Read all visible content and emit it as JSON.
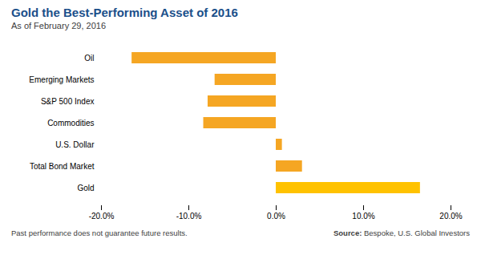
{
  "chart_data": {
    "type": "bar",
    "orientation": "horizontal",
    "title": "Gold the Best-Performing Asset of 2016",
    "subtitle": "As of February 29, 2016",
    "categories": [
      "Oil",
      "Emerging Markets",
      "S&P 500 Index",
      "Commodities",
      "U.S. Dollar",
      "Total Bond Market",
      "Gold"
    ],
    "values": [
      -16.5,
      -7.0,
      -7.8,
      -8.3,
      0.7,
      3.0,
      16.5
    ],
    "colors": [
      "#F5A623",
      "#F5A623",
      "#F5A623",
      "#F5A623",
      "#F5A623",
      "#F5A623",
      "#FFC200"
    ],
    "xlim": [
      -20.0,
      20.0
    ],
    "xticks": [
      {
        "value": -20.0,
        "label": "-20.0%"
      },
      {
        "value": -10.0,
        "label": "-10.0%"
      },
      {
        "value": 0.0,
        "label": "0.0%"
      },
      {
        "value": 10.0,
        "label": "10.0%"
      },
      {
        "value": 20.0,
        "label": "20.0%"
      }
    ],
    "grid": false,
    "footer": "Past performance does not guarantee future results.",
    "source_label": "Source:",
    "source_text": "Bespoke, U.S. Global Investors"
  }
}
